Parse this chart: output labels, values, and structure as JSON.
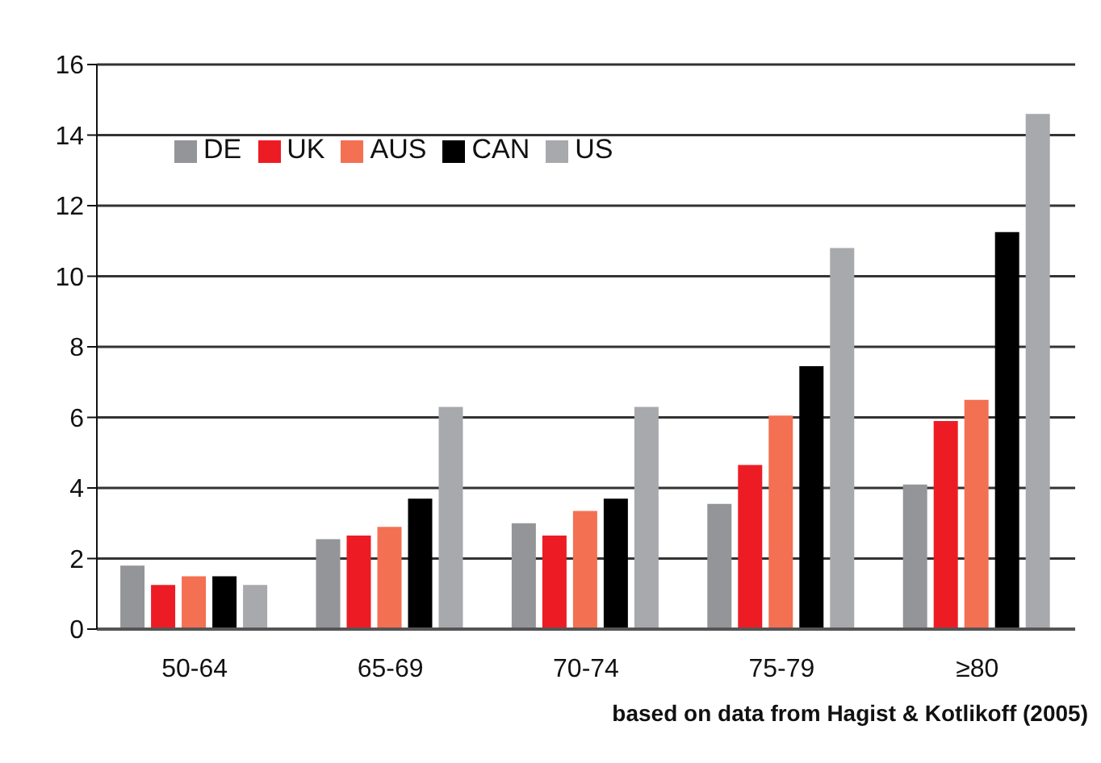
{
  "chart_data": {
    "type": "bar",
    "categories": [
      "50-64",
      "65-69",
      "70-74",
      "75-79",
      "≥80"
    ],
    "series": [
      {
        "name": "DE",
        "color": "#939598",
        "values": [
          1.8,
          2.55,
          3.0,
          3.55,
          4.1
        ]
      },
      {
        "name": "UK",
        "color": "#ed1c24",
        "values": [
          1.25,
          2.65,
          2.65,
          4.65,
          5.9
        ]
      },
      {
        "name": "AUS",
        "color": "#f37053",
        "values": [
          1.5,
          2.9,
          3.35,
          6.05,
          6.5
        ]
      },
      {
        "name": "CAN",
        "color": "#000000",
        "values": [
          1.5,
          3.7,
          3.7,
          7.45,
          11.25
        ]
      },
      {
        "name": "US",
        "color": "#a7a9ac",
        "values": [
          1.25,
          6.3,
          6.3,
          10.8,
          14.6
        ]
      }
    ],
    "ylim": [
      0,
      16
    ],
    "yticks": [
      0,
      2,
      4,
      6,
      8,
      10,
      12,
      14,
      16
    ],
    "grid": "y",
    "legend": "top left",
    "annotations": [
      "based on data from Hagist & Kotlikoff (2005)"
    ]
  }
}
